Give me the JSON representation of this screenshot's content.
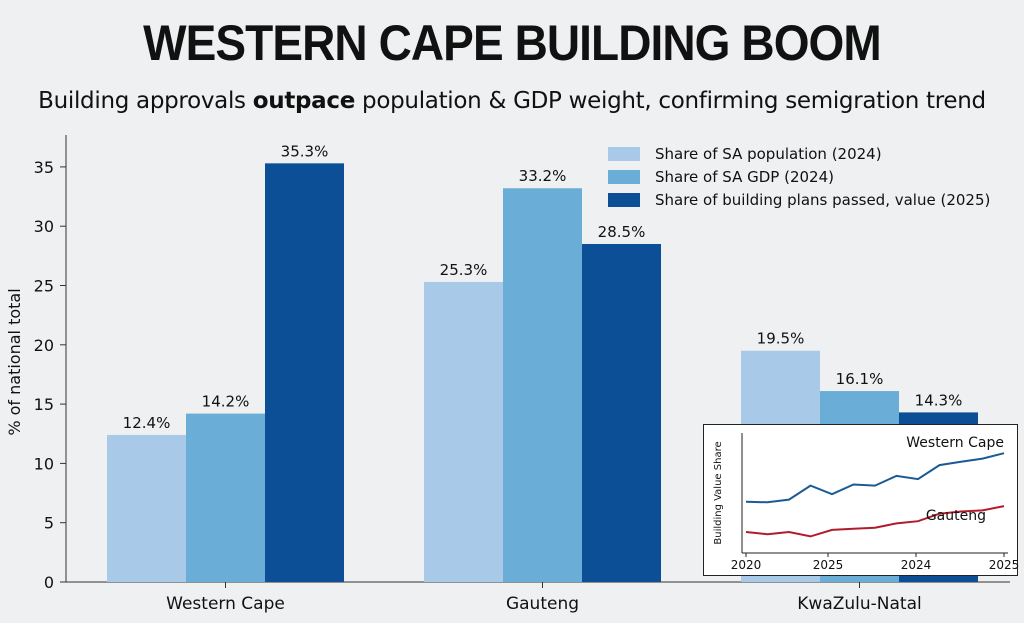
{
  "title": "WESTERN CAPE BUILDING BOOM",
  "subtitle": {
    "part1": "Building approvals ",
    "bold": "outpace",
    "part2": " population & GDP weight, confirming semigration trend"
  },
  "chart_data": [
    {
      "type": "bar",
      "title": "WESTERN CAPE BUILDING BOOM",
      "subtitle": "Building approvals outpace population & GDP weight, confirming semigration trend",
      "xlabel": "",
      "ylabel": "% of national total",
      "ylim": [
        0,
        37
      ],
      "yticks": [
        0,
        5,
        10,
        15,
        20,
        25,
        30,
        35
      ],
      "categories": [
        "Western Cape",
        "Gauteng",
        "KwaZulu-Natal"
      ],
      "series": [
        {
          "name": "Share of SA population (2024)",
          "values": [
            12.4,
            25.3,
            19.5
          ],
          "labels": [
            "12.4%",
            "25.3%",
            "19.5%"
          ],
          "color": "#a8c9e8"
        },
        {
          "name": "Share of SA GDP (2024)",
          "values": [
            14.2,
            33.2,
            16.1
          ],
          "labels": [
            "14.2%",
            "33.2%",
            "16.1%"
          ],
          "color": "#6aaed8"
        },
        {
          "name": "Share of building plans passed, value (2025)",
          "values": [
            35.3,
            28.5,
            14.3
          ],
          "labels": [
            "35.3%",
            "28.5%",
            "14.3%"
          ],
          "color": "#0d4f97"
        }
      ],
      "legend_position": "top-right",
      "grid": false
    },
    {
      "type": "line",
      "ylabel": "Building Value Share",
      "xticks": [
        "2020",
        "2025",
        "2024",
        "2025"
      ],
      "series": [
        {
          "name": "Western Cape",
          "color": "#1a5a96",
          "values": [
            4.0,
            3.95,
            4.2,
            5.5,
            4.7,
            5.6,
            5.5,
            6.4,
            6.1,
            7.4,
            7.7,
            8.0,
            8.5
          ]
        },
        {
          "name": "Gauteng",
          "color": "#b01c2e",
          "values": [
            1.2,
            1.0,
            1.2,
            0.8,
            1.4,
            1.5,
            1.6,
            2.0,
            2.2,
            2.9,
            3.1,
            3.2,
            3.6
          ]
        }
      ],
      "ylim": [
        0,
        10
      ],
      "grid": false
    }
  ]
}
